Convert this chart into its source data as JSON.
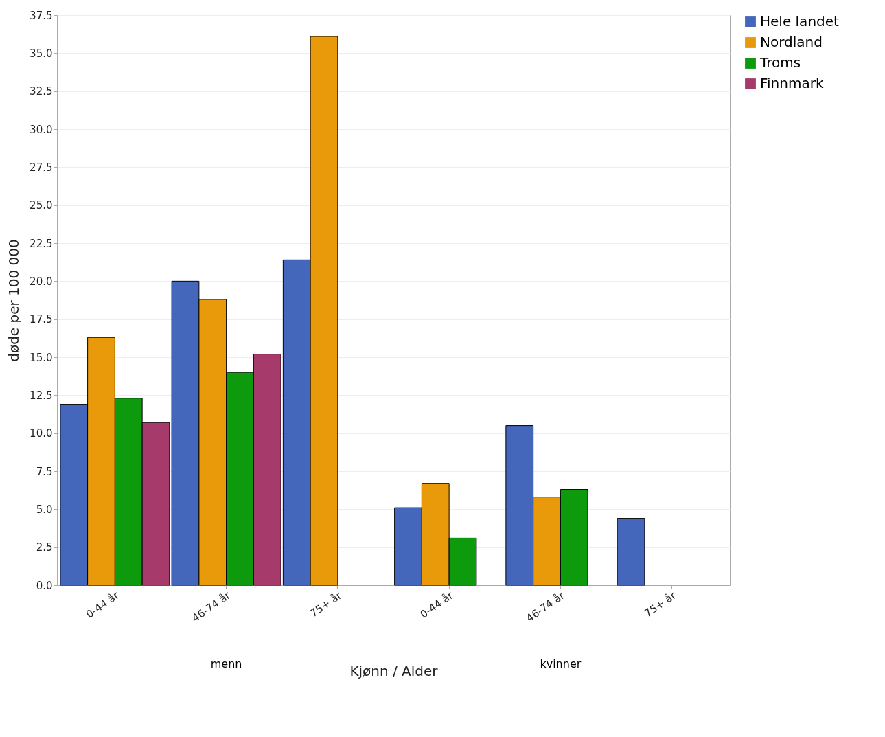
{
  "chart_data": {
    "type": "bar",
    "xlabel": "Kjønn / Alder",
    "ylabel": "døde per 100 000",
    "categories": [
      "0-44 år",
      "46-74 år",
      "75+ år",
      "0-44 år",
      "46-74 år",
      "75+ år"
    ],
    "annotations": [
      "menn",
      "kvinner"
    ],
    "series": [
      {
        "name": "Hele landet",
        "color": "#4466bb",
        "values": [
          11.9,
          20.0,
          21.4,
          5.1,
          10.5,
          4.4
        ]
      },
      {
        "name": "Nordland",
        "color": "#e89a0a",
        "values": [
          16.3,
          18.8,
          36.1,
          6.7,
          5.8,
          null
        ]
      },
      {
        "name": "Troms",
        "color": "#0d9a0d",
        "values": [
          12.3,
          14.0,
          null,
          3.1,
          6.3,
          null
        ]
      },
      {
        "name": "Finnmark",
        "color": "#a63a6b",
        "values": [
          10.7,
          15.2,
          null,
          null,
          null,
          null
        ]
      }
    ],
    "ylim": [
      0,
      37.5
    ],
    "yticks": [
      {
        "value": 0,
        "label": "0.0"
      },
      {
        "value": 2.5,
        "label": "2.5"
      },
      {
        "value": 5,
        "label": "5.0"
      },
      {
        "value": 7.5,
        "label": "7.5"
      },
      {
        "value": 10,
        "label": "10.0"
      },
      {
        "value": 12.5,
        "label": "12.5"
      },
      {
        "value": 15,
        "label": "15.0"
      },
      {
        "value": 17.5,
        "label": "17.5"
      },
      {
        "value": 20,
        "label": "20.0"
      },
      {
        "value": 22.5,
        "label": "22.5"
      },
      {
        "value": 25,
        "label": "25.0"
      },
      {
        "value": 27.5,
        "label": "27.5"
      },
      {
        "value": 30,
        "label": "30.0"
      },
      {
        "value": 32.5,
        "label": "32.5"
      },
      {
        "value": 35,
        "label": "35.0"
      },
      {
        "value": 37.5,
        "label": "37.5"
      }
    ],
    "grid": "y",
    "legend": "right"
  }
}
